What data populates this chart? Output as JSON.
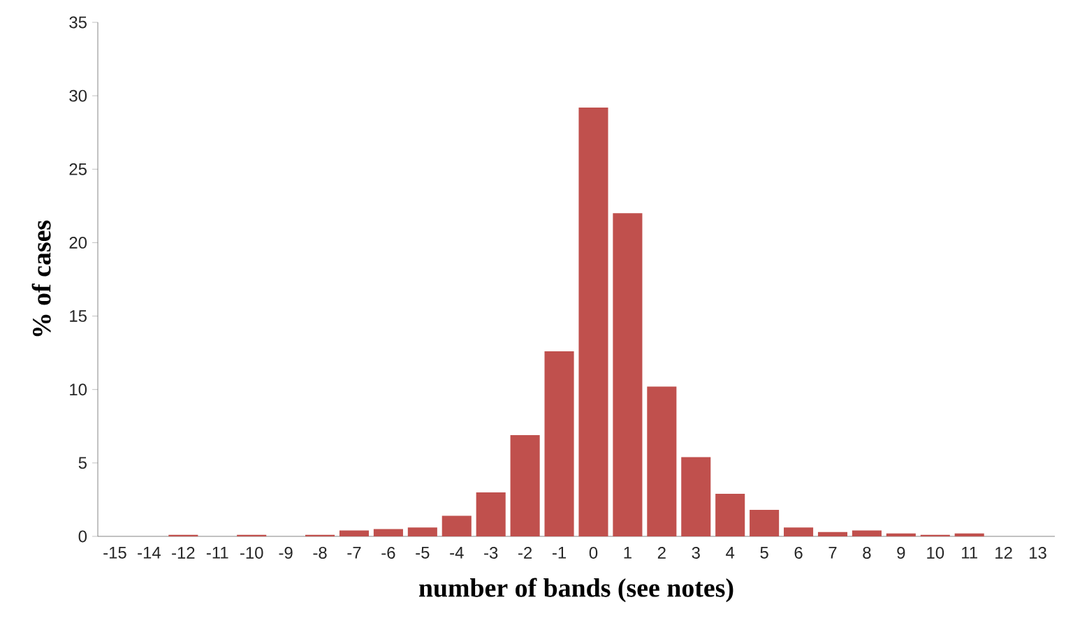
{
  "chart_data": {
    "type": "bar",
    "xlabel": "number of bands (see notes)",
    "ylabel": "% of cases",
    "categories": [
      "-15",
      "-14",
      "-12",
      "-11",
      "-10",
      "-9",
      "-8",
      "-7",
      "-6",
      "-5",
      "-4",
      "-3",
      "-2",
      "-1",
      "0",
      "1",
      "2",
      "3",
      "4",
      "5",
      "6",
      "7",
      "8",
      "9",
      "10",
      "11",
      "12",
      "13"
    ],
    "values": [
      0,
      0,
      0.1,
      0,
      0.1,
      0,
      0.1,
      0.4,
      0.5,
      0.6,
      1.4,
      3.0,
      6.9,
      12.6,
      29.2,
      22.0,
      10.2,
      5.4,
      2.9,
      1.8,
      0.6,
      0.3,
      0.4,
      0.2,
      0.1,
      0.2,
      0,
      0
    ],
    "color": "#c0504d",
    "ylim": [
      0,
      35
    ],
    "yticks": [
      0,
      5,
      10,
      15,
      20,
      25,
      30,
      35
    ]
  }
}
